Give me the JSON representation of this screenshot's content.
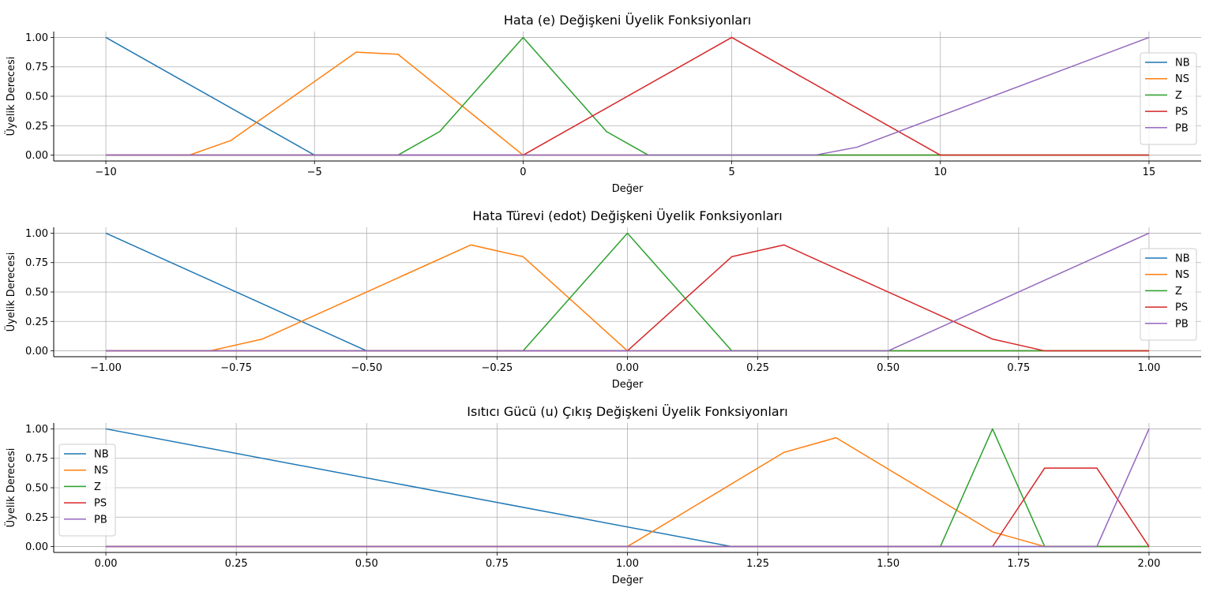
{
  "chart_data": [
    {
      "type": "line",
      "title": "Hata (e) Değişkeni Üyelik Fonksiyonları",
      "xlabel": "Değer",
      "ylabel": "Üyelik Derecesi",
      "xlim": [
        -11.25,
        16.25
      ],
      "ylim": [
        -0.05,
        1.05
      ],
      "xticks": [
        -10,
        -5,
        0,
        5,
        10,
        15
      ],
      "xtick_labels": [
        "−10",
        "−5",
        "0",
        "5",
        "10",
        "15"
      ],
      "yticks": [
        0,
        0.25,
        0.5,
        0.75,
        1
      ],
      "ytick_labels": [
        "0.00",
        "0.25",
        "0.50",
        "0.75",
        "1.00"
      ],
      "grid": true,
      "legend": "right",
      "series": [
        {
          "name": "NB",
          "color": "#1f77b4",
          "points": [
            [
              -10,
              1.0
            ],
            [
              -5,
              0.0
            ],
            [
              15,
              0.0
            ]
          ]
        },
        {
          "name": "NS",
          "color": "#ff7f0e",
          "points": [
            [
              -10,
              0.0
            ],
            [
              -8,
              0.0
            ],
            [
              -7,
              0.125
            ],
            [
              -4,
              0.875
            ],
            [
              -3,
              0.857
            ],
            [
              0,
              0.0
            ],
            [
              15,
              0.0
            ]
          ]
        },
        {
          "name": "Z",
          "color": "#2ca02c",
          "points": [
            [
              -10,
              0.0
            ],
            [
              -3,
              0.0
            ],
            [
              -2,
              0.2
            ],
            [
              0,
              1.0
            ],
            [
              2,
              0.2
            ],
            [
              3,
              0.0
            ],
            [
              15,
              0.0
            ]
          ]
        },
        {
          "name": "PS",
          "color": "#d62728",
          "points": [
            [
              -10,
              0.0
            ],
            [
              0,
              0.0
            ],
            [
              5,
              1.0
            ],
            [
              10,
              0.0
            ],
            [
              15,
              0.0
            ]
          ]
        },
        {
          "name": "PB",
          "color": "#9467bd",
          "points": [
            [
              -10,
              0.0
            ],
            [
              7,
              0.0
            ],
            [
              8,
              0.067
            ],
            [
              15,
              1.0
            ]
          ]
        }
      ]
    },
    {
      "type": "line",
      "title": "Hata Türevi (edot) Değişkeni Üyelik Fonksiyonları",
      "xlabel": "Değer",
      "ylabel": "Üyelik Derecesi",
      "xlim": [
        -1.1,
        1.1
      ],
      "ylim": [
        -0.05,
        1.05
      ],
      "xticks": [
        -1,
        -0.75,
        -0.5,
        -0.25,
        0,
        0.25,
        0.5,
        0.75,
        1
      ],
      "xtick_labels": [
        "−1.00",
        "−0.75",
        "−0.50",
        "−0.25",
        "0.00",
        "0.25",
        "0.50",
        "0.75",
        "1.00"
      ],
      "yticks": [
        0,
        0.25,
        0.5,
        0.75,
        1
      ],
      "ytick_labels": [
        "0.00",
        "0.25",
        "0.50",
        "0.75",
        "1.00"
      ],
      "grid": true,
      "legend": "right",
      "series": [
        {
          "name": "NB",
          "color": "#1f77b4",
          "points": [
            [
              -1.0,
              1.0
            ],
            [
              -0.5,
              0.0
            ],
            [
              1.0,
              0.0
            ]
          ]
        },
        {
          "name": "NS",
          "color": "#ff7f0e",
          "points": [
            [
              -1.0,
              0.0
            ],
            [
              -0.8,
              0.0
            ],
            [
              -0.7,
              0.1
            ],
            [
              -0.3,
              0.9
            ],
            [
              -0.2,
              0.8
            ],
            [
              0.0,
              0.0
            ],
            [
              1.0,
              0.0
            ]
          ]
        },
        {
          "name": "Z",
          "color": "#2ca02c",
          "points": [
            [
              -1.0,
              0.0
            ],
            [
              -0.2,
              0.0
            ],
            [
              0.0,
              1.0
            ],
            [
              0.2,
              0.0
            ],
            [
              1.0,
              0.0
            ]
          ]
        },
        {
          "name": "PS",
          "color": "#d62728",
          "points": [
            [
              -1.0,
              0.0
            ],
            [
              0.0,
              0.0
            ],
            [
              0.2,
              0.8
            ],
            [
              0.3,
              0.9
            ],
            [
              0.7,
              0.1
            ],
            [
              0.8,
              0.0
            ],
            [
              1.0,
              0.0
            ]
          ]
        },
        {
          "name": "PB",
          "color": "#9467bd",
          "points": [
            [
              -1.0,
              0.0
            ],
            [
              0.5,
              0.0
            ],
            [
              1.0,
              1.0
            ]
          ]
        }
      ]
    },
    {
      "type": "line",
      "title": "Isıtıcı Gücü (u) Çıkış Değişkeni Üyelik Fonksiyonları",
      "xlabel": "Değer",
      "ylabel": "Üyelik Derecesi",
      "xlim": [
        -0.1,
        2.1
      ],
      "ylim": [
        -0.05,
        1.05
      ],
      "xticks": [
        0,
        0.25,
        0.5,
        0.75,
        1,
        1.25,
        1.5,
        1.75,
        2
      ],
      "xtick_labels": [
        "0.00",
        "0.25",
        "0.50",
        "0.75",
        "1.00",
        "1.25",
        "1.50",
        "1.75",
        "2.00"
      ],
      "yticks": [
        0,
        0.25,
        0.5,
        0.75,
        1
      ],
      "ytick_labels": [
        "0.00",
        "0.25",
        "0.50",
        "0.75",
        "1.00"
      ],
      "grid": true,
      "legend": "left",
      "series": [
        {
          "name": "NB",
          "color": "#1f77b4",
          "points": [
            [
              0.0,
              1.0
            ],
            [
              1.2,
              0.0
            ],
            [
              2.0,
              0.0
            ]
          ]
        },
        {
          "name": "NS",
          "color": "#ff7f0e",
          "points": [
            [
              0.0,
              0.0
            ],
            [
              1.0,
              0.0
            ],
            [
              1.3,
              0.8
            ],
            [
              1.4,
              0.925
            ],
            [
              1.7,
              0.125
            ],
            [
              1.8,
              0.0
            ],
            [
              2.0,
              0.0
            ]
          ]
        },
        {
          "name": "Z",
          "color": "#2ca02c",
          "points": [
            [
              0.0,
              0.0
            ],
            [
              1.6,
              0.0
            ],
            [
              1.7,
              1.0
            ],
            [
              1.8,
              0.0
            ],
            [
              2.0,
              0.0
            ]
          ]
        },
        {
          "name": "PS",
          "color": "#d62728",
          "points": [
            [
              0.0,
              0.0
            ],
            [
              1.7,
              0.0
            ],
            [
              1.8,
              0.667
            ],
            [
              1.9,
              0.667
            ],
            [
              2.0,
              0.0
            ]
          ]
        },
        {
          "name": "PB",
          "color": "#9467bd",
          "points": [
            [
              0.0,
              0.0
            ],
            [
              1.9,
              0.0
            ],
            [
              2.0,
              1.0
            ]
          ]
        }
      ]
    }
  ]
}
